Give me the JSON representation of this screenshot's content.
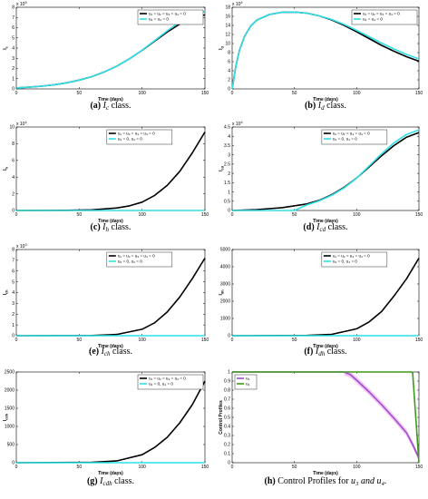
{
  "colors": {
    "black_line": "#000000",
    "cyan_line": "#2fe0e6",
    "u3_line": "#9b4fd0",
    "u3_shade": "#f2b4f0",
    "u4_line": "#3d9a1a"
  },
  "chart_data": [
    {
      "id": "a",
      "type": "line",
      "xlabel": "Time (days)",
      "ylabel": "I_c",
      "exponent": "x 10^5",
      "xlim": [
        0,
        150
      ],
      "ylim": [
        0,
        8
      ],
      "xticks": [
        0,
        50,
        100,
        150
      ],
      "yticks": [
        0,
        1,
        2,
        3,
        4,
        5,
        6,
        7,
        8
      ],
      "legend": [
        "u₁ = u₂ = u₃ = u₄ = 0",
        "u₃ = u₄ = 0"
      ],
      "legend_position": "top-right",
      "series": [
        {
          "color": "#000000",
          "x": [
            0,
            10,
            20,
            30,
            40,
            50,
            60,
            70,
            80,
            90,
            100,
            110,
            120,
            130,
            140,
            150
          ],
          "y": [
            0.1,
            0.17,
            0.27,
            0.41,
            0.6,
            0.86,
            1.2,
            1.66,
            2.24,
            2.95,
            3.78,
            4.68,
            5.57,
            6.36,
            6.95,
            7.25
          ]
        },
        {
          "color": "#2fe0e6",
          "x": [
            0,
            10,
            20,
            30,
            40,
            50,
            60,
            70,
            80,
            90,
            100,
            110,
            120,
            130,
            140,
            150
          ],
          "y": [
            0.1,
            0.17,
            0.27,
            0.41,
            0.6,
            0.86,
            1.2,
            1.66,
            2.24,
            2.95,
            3.8,
            4.74,
            5.69,
            6.56,
            7.22,
            7.6
          ]
        }
      ],
      "caption_letter": "(a)",
      "caption_var": "I",
      "caption_sub": "c",
      "caption_rest": " class."
    },
    {
      "id": "b",
      "type": "line",
      "xlabel": "Time (days)",
      "ylabel": "I_d",
      "exponent": "x 10^4",
      "xlim": [
        0,
        150
      ],
      "ylim": [
        0,
        18
      ],
      "xticks": [
        0,
        50,
        100,
        150
      ],
      "yticks": [
        0,
        2,
        4,
        6,
        8,
        10,
        12,
        14,
        16,
        18
      ],
      "legend": [
        "u₁ = u₂ = u₃ = u₄ = 0",
        "u₃ = u₄ = 0"
      ],
      "legend_position": "top-right",
      "series": [
        {
          "color": "#000000",
          "x": [
            0,
            3,
            6,
            10,
            15,
            20,
            30,
            40,
            50,
            60,
            70,
            80,
            90,
            100,
            110,
            120,
            130,
            140,
            150
          ],
          "y": [
            0,
            5,
            8.6,
            11.6,
            13.9,
            15.2,
            16.4,
            16.9,
            16.95,
            16.7,
            16.1,
            15.2,
            14,
            12.6,
            11.1,
            9.6,
            8.3,
            7.1,
            6.1
          ]
        },
        {
          "color": "#2fe0e6",
          "x": [
            0,
            3,
            6,
            10,
            15,
            20,
            30,
            40,
            50,
            60,
            70,
            80,
            90,
            100,
            110,
            120,
            130,
            140,
            150
          ],
          "y": [
            0,
            5,
            8.6,
            11.6,
            13.9,
            15.2,
            16.4,
            16.9,
            16.95,
            16.7,
            16.1,
            15.3,
            14.2,
            12.9,
            11.5,
            10.1,
            8.8,
            7.6,
            6.6
          ]
        }
      ],
      "caption_letter": "(b)",
      "caption_var": "I",
      "caption_sub": "d",
      "caption_rest": " class."
    },
    {
      "id": "c",
      "type": "line",
      "xlabel": "Time (days)",
      "ylabel": "I_h",
      "exponent": "x 10^4",
      "xlim": [
        0,
        150
      ],
      "ylim": [
        0,
        10
      ],
      "xticks": [
        0,
        50,
        100,
        150
      ],
      "yticks": [
        0,
        2,
        4,
        6,
        8,
        10
      ],
      "legend": [
        "u₁ = u₂ = u₃ = u₄ = 0",
        "u₃ = 0, u₄ = 0"
      ],
      "legend_position": "top-left",
      "series": [
        {
          "color": "#000000",
          "x": [
            0,
            40,
            60,
            80,
            90,
            100,
            110,
            120,
            130,
            140,
            150
          ],
          "y": [
            0,
            0.02,
            0.08,
            0.3,
            0.55,
            1,
            1.8,
            3,
            4.7,
            6.9,
            9.4
          ]
        },
        {
          "color": "#2fe0e6",
          "x": [
            0,
            150
          ],
          "y": [
            0,
            0
          ]
        }
      ],
      "caption_letter": "(c)",
      "caption_var": "I",
      "caption_sub": "h",
      "caption_rest": " class."
    },
    {
      "id": "d",
      "type": "line",
      "xlabel": "Time (days)",
      "ylabel": "I_cd",
      "exponent": "x 10^4",
      "xlim": [
        0,
        150
      ],
      "ylim": [
        0,
        4.5
      ],
      "xticks": [
        0,
        50,
        100,
        150
      ],
      "yticks": [
        0,
        0.5,
        1,
        1.5,
        2,
        2.5,
        3,
        3.5,
        4,
        4.5
      ],
      "legend": [
        "u₁ = u₂ = u₃ = u₄ = 0",
        "u₃ = 0, u₄ = 0"
      ],
      "legend_position": "top-left",
      "series": [
        {
          "color": "#000000",
          "x": [
            0,
            20,
            40,
            60,
            70,
            80,
            90,
            100,
            110,
            120,
            130,
            140,
            150
          ],
          "y": [
            0,
            0.05,
            0.15,
            0.35,
            0.55,
            0.85,
            1.25,
            1.75,
            2.35,
            2.95,
            3.5,
            3.95,
            4.2
          ]
        },
        {
          "color": "#2fe0e6",
          "x": [
            0,
            40,
            50,
            55,
            60,
            70,
            80,
            90,
            100,
            110,
            120,
            130,
            140,
            150
          ],
          "y": [
            0,
            0,
            0,
            0.15,
            0.3,
            0.52,
            0.82,
            1.22,
            1.75,
            2.4,
            3.05,
            3.65,
            4.1,
            4.35
          ]
        }
      ],
      "caption_letter": "(d)",
      "caption_var": "I",
      "caption_sub": "cd",
      "caption_rest": " class."
    },
    {
      "id": "e",
      "type": "line",
      "xlabel": "Time (days)",
      "ylabel": "I_ch",
      "exponent": "x 10^3",
      "xlim": [
        0,
        150
      ],
      "ylim": [
        0,
        8
      ],
      "xticks": [
        0,
        50,
        100,
        150
      ],
      "yticks": [
        0,
        1,
        2,
        3,
        4,
        5,
        6,
        7,
        8
      ],
      "legend": [
        "u₁ = u₂ = u₃ = u₄ = 0",
        "u₃ = 0, u₄ = 0"
      ],
      "legend_position": "top-left",
      "series": [
        {
          "color": "#000000",
          "x": [
            0,
            60,
            80,
            100,
            110,
            120,
            130,
            140,
            150
          ],
          "y": [
            0,
            0.02,
            0.12,
            0.6,
            1.2,
            2.2,
            3.6,
            5.3,
            7.2
          ]
        },
        {
          "color": "#2fe0e6",
          "x": [
            0,
            150
          ],
          "y": [
            0,
            0
          ]
        }
      ],
      "caption_letter": "(e)",
      "caption_var": "I",
      "caption_sub": "ch",
      "caption_rest": " class."
    },
    {
      "id": "f",
      "type": "line",
      "xlabel": "Time (days)",
      "ylabel": "I_dh",
      "exponent": "",
      "xlim": [
        0,
        150
      ],
      "ylim": [
        0,
        5000
      ],
      "xticks": [
        0,
        50,
        100,
        150
      ],
      "yticks": [
        0,
        1000,
        2000,
        3000,
        4000,
        5000
      ],
      "legend": [
        "u₁ = u₂ = u₃ = u₄ = 0",
        "u₃ = 0, u₄ = 0"
      ],
      "legend_position": "top-left",
      "series": [
        {
          "color": "#000000",
          "x": [
            0,
            60,
            80,
            100,
            110,
            120,
            130,
            140,
            150
          ],
          "y": [
            0,
            15,
            80,
            400,
            800,
            1400,
            2300,
            3300,
            4500
          ]
        },
        {
          "color": "#2fe0e6",
          "x": [
            0,
            150
          ],
          "y": [
            0,
            0
          ]
        }
      ],
      "caption_letter": "(f)",
      "caption_var": "I",
      "caption_sub": "dh",
      "caption_rest": " class."
    },
    {
      "id": "g",
      "type": "line",
      "xlabel": "Time (days)",
      "ylabel": "I_cdh",
      "exponent": "",
      "xlim": [
        0,
        150
      ],
      "ylim": [
        0,
        2500
      ],
      "xticks": [
        0,
        50,
        100,
        150
      ],
      "yticks": [
        0,
        500,
        1000,
        1500,
        2000,
        2500
      ],
      "legend": [
        "u₁ = u₂ = u₃ = u₄ = 0",
        "u₃ = 0, u₄ = 0"
      ],
      "legend_position": "top-right",
      "series": [
        {
          "color": "#000000",
          "x": [
            0,
            60,
            80,
            100,
            110,
            120,
            130,
            140,
            150
          ],
          "y": [
            0,
            10,
            50,
            220,
            420,
            700,
            1100,
            1600,
            2250
          ]
        },
        {
          "color": "#2fe0e6",
          "x": [
            0,
            150
          ],
          "y": [
            0,
            0
          ]
        }
      ],
      "caption_letter": "(g)",
      "caption_var": "I",
      "caption_sub": "cdh",
      "caption_rest": " class."
    },
    {
      "id": "h",
      "type": "line",
      "xlabel": "Time (days)",
      "ylabel": "Control Profiles",
      "exponent": "",
      "xlim": [
        0,
        150
      ],
      "ylim": [
        0,
        1
      ],
      "xticks": [
        0,
        50,
        100,
        150
      ],
      "yticks": [
        0,
        0.1,
        0.2,
        0.3,
        0.4,
        0.5,
        0.6,
        0.7,
        0.8,
        0.9,
        1
      ],
      "legend": [
        "u₃",
        "u₄"
      ],
      "legend_position": "top-left",
      "series": [
        {
          "color": "#9b4fd0",
          "x": [
            0,
            90,
            95,
            100,
            110,
            120,
            130,
            140,
            145,
            150
          ],
          "y": [
            1,
            1,
            0.97,
            0.91,
            0.78,
            0.64,
            0.49,
            0.33,
            0.2,
            0.05
          ]
        },
        {
          "color": "#3d9a1a",
          "x": [
            0,
            144,
            145,
            150
          ],
          "y": [
            1,
            1,
            0.99,
            0
          ]
        }
      ],
      "caption_letter": "(h)",
      "caption_var": "Control Profiles for ",
      "caption_sub": "",
      "caption_rest": "u₃ and u₄."
    }
  ]
}
